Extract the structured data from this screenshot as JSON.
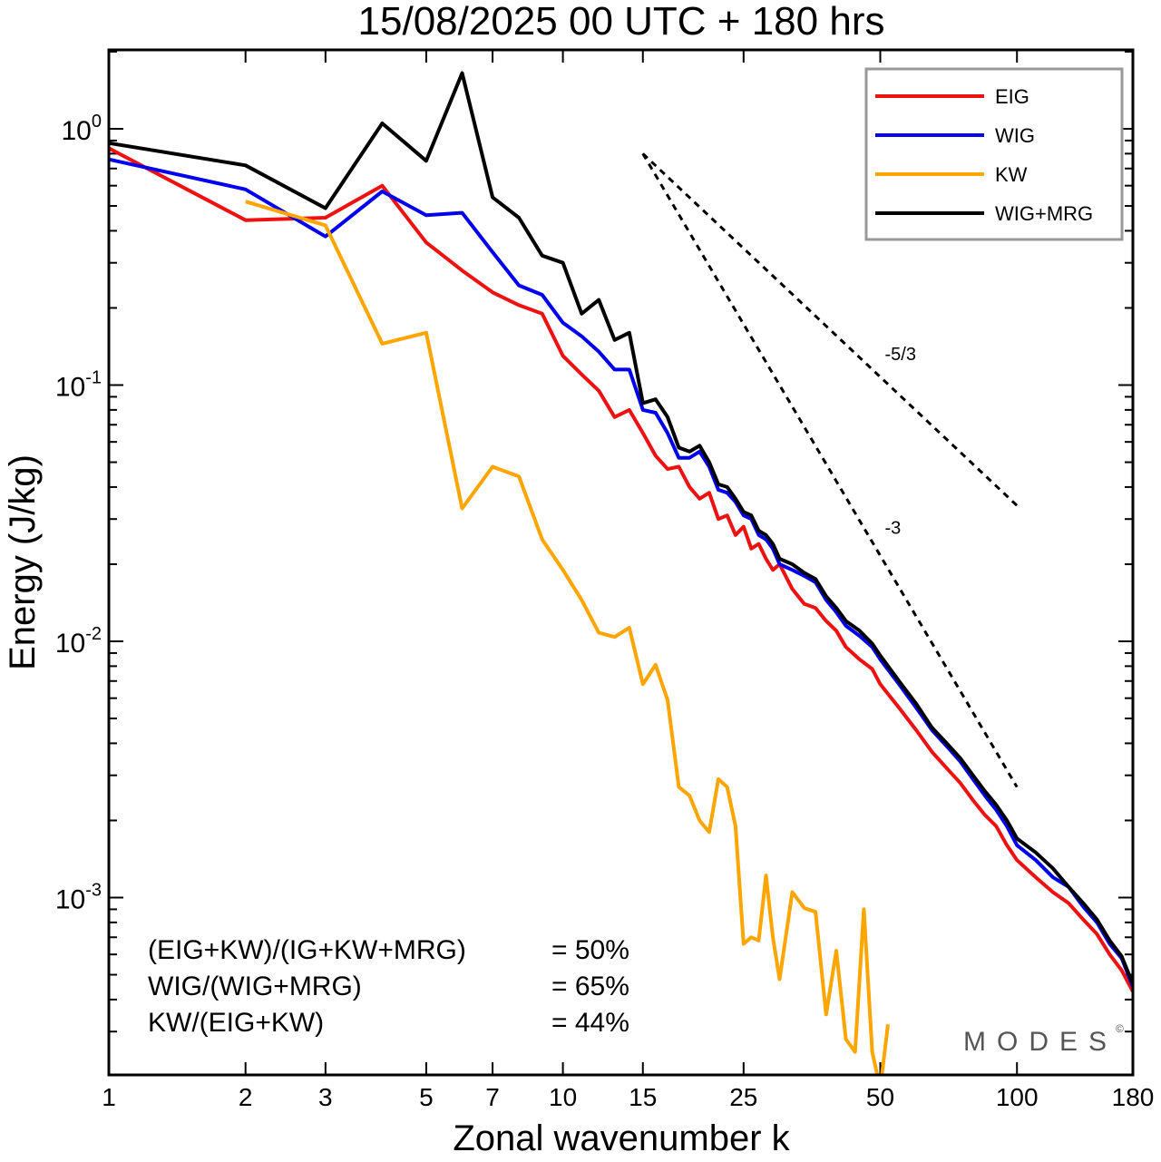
{
  "chart_data": {
    "type": "line",
    "title": "15/08/2025  00 UTC  + 180 hrs",
    "xlabel": "Zonal wavenumber k",
    "ylabel": "Energy (J/kg)",
    "xscale": "log",
    "yscale": "log",
    "xlim": [
      1,
      180
    ],
    "ylim": [
      0.0002,
      2.0
    ],
    "xticks": [
      {
        "value": 1,
        "label": "1"
      },
      {
        "value": 2,
        "label": "2"
      },
      {
        "value": 3,
        "label": "3"
      },
      {
        "value": 5,
        "label": "5"
      },
      {
        "value": 7,
        "label": "7"
      },
      {
        "value": 10,
        "label": "10"
      },
      {
        "value": 15,
        "label": "15"
      },
      {
        "value": 25,
        "label": "25"
      },
      {
        "value": 50,
        "label": "50"
      },
      {
        "value": 100,
        "label": "100"
      },
      {
        "value": 180,
        "label": "180"
      }
    ],
    "yticks": [
      {
        "value": 1,
        "base": "10",
        "exp": "0"
      },
      {
        "value": 0.1,
        "base": "10",
        "exp": "-1"
      },
      {
        "value": 0.01,
        "base": "10",
        "exp": "-2"
      },
      {
        "value": 0.001,
        "base": "10",
        "exp": "-3"
      }
    ],
    "legend_position": "top-right",
    "series": [
      {
        "name": "EIG",
        "color": "#ee1111",
        "x": [
          1,
          2,
          3,
          4,
          5,
          6,
          7,
          8,
          9,
          10,
          11,
          12,
          13,
          14,
          15,
          16,
          17,
          18,
          19,
          20,
          21,
          22,
          23,
          24,
          25,
          26,
          27,
          28,
          29,
          30,
          32,
          34,
          36,
          38,
          40,
          42,
          45,
          48,
          50,
          55,
          60,
          65,
          70,
          75,
          80,
          85,
          90,
          95,
          100,
          110,
          120,
          130,
          140,
          150,
          160,
          170,
          180
        ],
        "y": [
          0.84,
          0.44,
          0.45,
          0.6,
          0.36,
          0.28,
          0.23,
          0.205,
          0.19,
          0.13,
          0.11,
          0.095,
          0.075,
          0.08,
          0.065,
          0.053,
          0.047,
          0.048,
          0.04,
          0.036,
          0.038,
          0.03,
          0.031,
          0.026,
          0.028,
          0.023,
          0.024,
          0.021,
          0.019,
          0.02,
          0.016,
          0.014,
          0.0135,
          0.012,
          0.011,
          0.0095,
          0.0085,
          0.0078,
          0.0068,
          0.0055,
          0.0045,
          0.0037,
          0.0032,
          0.0028,
          0.0024,
          0.0021,
          0.0019,
          0.0016,
          0.0014,
          0.0012,
          0.00105,
          0.00095,
          0.00082,
          0.00072,
          0.0006,
          0.00052,
          0.00043
        ]
      },
      {
        "name": "WIG",
        "color": "#0000ee",
        "x": [
          1,
          2,
          3,
          4,
          5,
          6,
          7,
          8,
          9,
          10,
          11,
          12,
          13,
          14,
          15,
          16,
          17,
          18,
          19,
          20,
          21,
          22,
          23,
          24,
          25,
          26,
          27,
          28,
          29,
          30,
          32,
          34,
          36,
          38,
          40,
          42,
          45,
          48,
          50,
          55,
          60,
          65,
          70,
          75,
          80,
          85,
          90,
          95,
          100,
          110,
          120,
          130,
          140,
          150,
          160,
          170,
          180
        ],
        "y": [
          0.76,
          0.58,
          0.38,
          0.57,
          0.46,
          0.47,
          0.33,
          0.245,
          0.225,
          0.175,
          0.155,
          0.135,
          0.115,
          0.115,
          0.08,
          0.078,
          0.065,
          0.052,
          0.052,
          0.055,
          0.048,
          0.039,
          0.038,
          0.035,
          0.031,
          0.03,
          0.026,
          0.025,
          0.023,
          0.02,
          0.019,
          0.018,
          0.017,
          0.0145,
          0.013,
          0.0115,
          0.0105,
          0.0095,
          0.0085,
          0.0068,
          0.0055,
          0.0045,
          0.0039,
          0.0034,
          0.0029,
          0.0025,
          0.0022,
          0.0019,
          0.0016,
          0.0014,
          0.0012,
          0.0011,
          0.00092,
          0.0008,
          0.00066,
          0.00058,
          0.00045
        ]
      },
      {
        "name": "KW",
        "color": "#ffa500",
        "x": [
          2,
          3,
          4,
          5,
          6,
          7,
          8,
          9,
          10,
          11,
          12,
          13,
          14,
          15,
          16,
          17,
          18,
          19,
          20,
          21,
          22,
          23,
          24,
          25,
          26,
          27,
          28,
          29,
          30,
          32,
          34,
          36,
          38,
          40,
          42,
          44,
          46,
          48,
          50,
          52
        ],
        "y": [
          0.52,
          0.42,
          0.145,
          0.16,
          0.033,
          0.048,
          0.044,
          0.025,
          0.019,
          0.0145,
          0.0108,
          0.0104,
          0.0113,
          0.0068,
          0.0081,
          0.0059,
          0.0027,
          0.0025,
          0.002,
          0.0018,
          0.0029,
          0.0027,
          0.0019,
          0.00066,
          0.0007,
          0.00068,
          0.00122,
          0.0007,
          0.00048,
          0.00105,
          0.00091,
          0.00088,
          0.00035,
          0.00062,
          0.00028,
          0.00025,
          0.0009,
          0.00025,
          0.00018,
          0.00032
        ]
      },
      {
        "name": "WIG+MRG",
        "color": "#000000",
        "x": [
          1,
          2,
          3,
          4,
          5,
          6,
          7,
          8,
          9,
          10,
          11,
          12,
          13,
          14,
          15,
          16,
          17,
          18,
          19,
          20,
          21,
          22,
          23,
          24,
          25,
          26,
          27,
          28,
          29,
          30,
          32,
          34,
          36,
          38,
          40,
          42,
          45,
          48,
          50,
          55,
          60,
          65,
          70,
          75,
          80,
          85,
          90,
          95,
          100,
          110,
          120,
          130,
          140,
          150,
          160,
          170,
          180
        ],
        "y": [
          0.88,
          0.72,
          0.49,
          1.05,
          0.75,
          1.65,
          0.54,
          0.45,
          0.32,
          0.3,
          0.19,
          0.215,
          0.15,
          0.16,
          0.085,
          0.088,
          0.075,
          0.057,
          0.055,
          0.058,
          0.05,
          0.041,
          0.04,
          0.036,
          0.032,
          0.031,
          0.027,
          0.026,
          0.024,
          0.021,
          0.02,
          0.0185,
          0.0175,
          0.015,
          0.0135,
          0.012,
          0.011,
          0.0098,
          0.0088,
          0.007,
          0.0057,
          0.0046,
          0.004,
          0.0035,
          0.003,
          0.0026,
          0.0023,
          0.002,
          0.0017,
          0.0015,
          0.0013,
          0.0011,
          0.00095,
          0.00082,
          0.00068,
          0.00059,
          0.00046
        ]
      }
    ],
    "reference_lines": [
      {
        "label": "-5/3",
        "slope": -1.6667,
        "x_start": 15,
        "y_start": 0.8,
        "x_end": 100
      },
      {
        "label": "-3",
        "slope": -3,
        "x_start": 15,
        "y_start": 0.8,
        "x_end": 100
      }
    ],
    "annotations": [
      {
        "left": "(EIG+KW)/(IG+KW+MRG)",
        "right": "= 50%"
      },
      {
        "left": "WIG/(WIG+MRG)",
        "right": "= 65%"
      },
      {
        "left": "KW/(EIG+KW)",
        "right": "= 44%"
      }
    ],
    "watermark": "MODES",
    "watermark_mark": "©"
  }
}
